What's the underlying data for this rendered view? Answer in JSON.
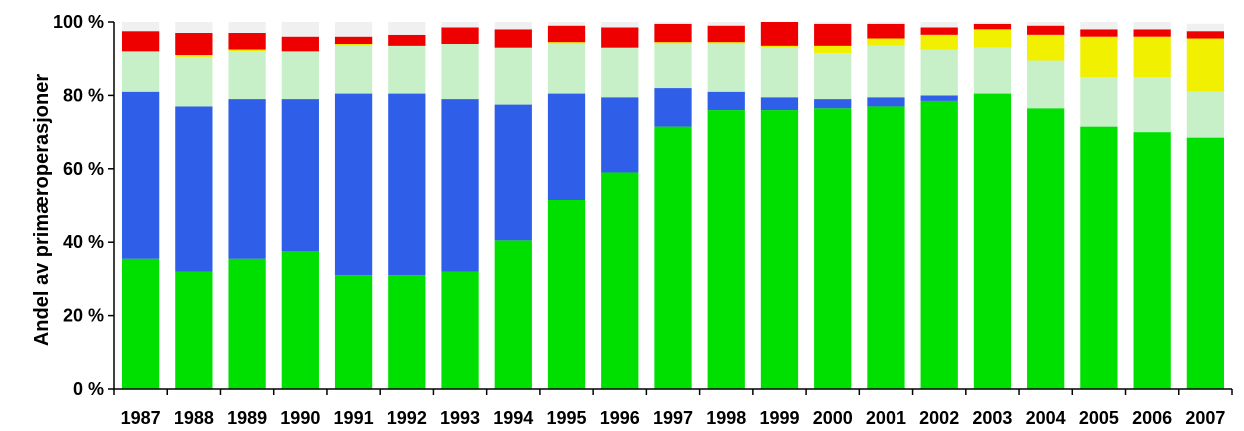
{
  "chart_data": {
    "type": "bar",
    "stacked": true,
    "ylabel": "Andel av primæroperasjoner",
    "xlabel": "",
    "ylim": [
      0,
      100
    ],
    "yticks": [
      "0 %",
      "20 %",
      "40 %",
      "60 %",
      "80 %",
      "100 %"
    ],
    "categories": [
      "1987",
      "1988",
      "1989",
      "1990",
      "1991",
      "1992",
      "1993",
      "1994",
      "1995",
      "1996",
      "1997",
      "1998",
      "1999",
      "2000",
      "2001",
      "2002",
      "2003",
      "2004",
      "2005",
      "2006",
      "2007"
    ],
    "legend": "none",
    "grid": false,
    "series": [
      {
        "color": "#00e000",
        "values": [
          35.5,
          32,
          35.5,
          37.5,
          31,
          31,
          32,
          40.5,
          51.5,
          59,
          71.5,
          76,
          76,
          76.5,
          77,
          78.5,
          80.5,
          76.5,
          71.5,
          70,
          68.5
        ]
      },
      {
        "color": "#2f5fe8",
        "values": [
          45.5,
          45,
          43.5,
          41.5,
          49.5,
          49.5,
          47,
          37,
          29,
          20.5,
          10.5,
          5,
          3.5,
          2.5,
          2.5,
          1.5,
          0,
          0,
          0,
          0,
          0
        ]
      },
      {
        "color": "#c8f0c8",
        "values": [
          11,
          13.5,
          13,
          13,
          13,
          13,
          15,
          15.5,
          13.5,
          13.5,
          12,
          13,
          13.5,
          12.5,
          14,
          12.5,
          12.5,
          13,
          13.5,
          15,
          12.5
        ]
      },
      {
        "color": "#f0f000",
        "values": [
          0,
          0.5,
          0.5,
          0,
          0.5,
          0,
          0,
          0,
          0.5,
          0,
          0.5,
          0.5,
          0.5,
          2,
          2,
          4,
          5,
          7,
          11,
          11,
          14.5
        ]
      },
      {
        "color": "#ee0000",
        "values": [
          5.5,
          6,
          4.5,
          4,
          2,
          3,
          4.5,
          5,
          4.5,
          5.5,
          5,
          4.5,
          6.5,
          6,
          4,
          2,
          1.5,
          2.5,
          2,
          2,
          2
        ]
      },
      {
        "color": "#f0f0f0",
        "values": [
          2.5,
          3,
          3,
          4,
          4,
          3.5,
          1.5,
          2,
          1,
          1.5,
          0.5,
          1,
          0,
          0.5,
          0.5,
          1.5,
          0.5,
          1,
          2,
          2,
          2
        ]
      }
    ]
  }
}
